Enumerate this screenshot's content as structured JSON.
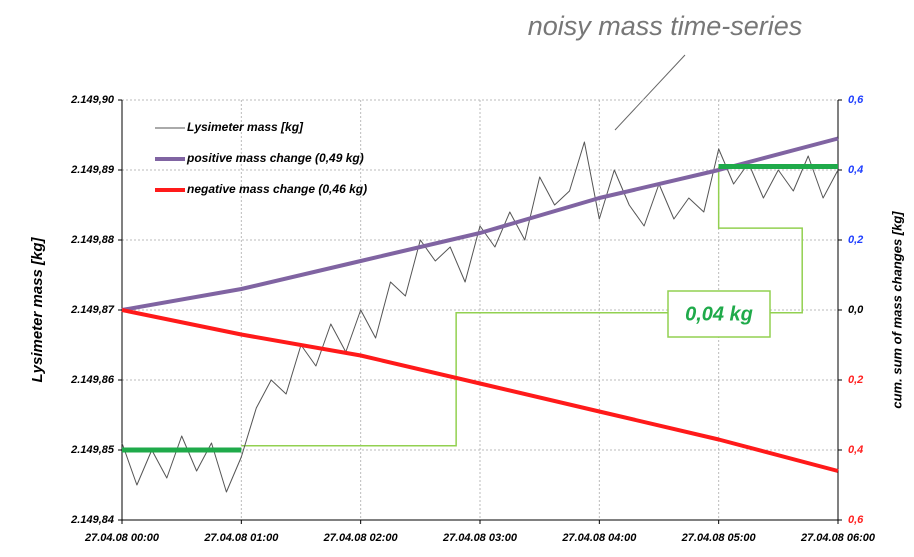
{
  "chart_data": {
    "type": "line",
    "annotation_top": "noisy mass time-series",
    "annotation_box": "0,04 kg",
    "ylabel": "Lysimeter mass [kg]",
    "y2label": "cum. sum of mass changes [kg]",
    "xlim": [
      0,
      6
    ],
    "xticks": [
      {
        "value": 0,
        "label": "27.04.08 00:00"
      },
      {
        "value": 1,
        "label": "27.04.08 01:00"
      },
      {
        "value": 2,
        "label": "27.04.08 02:00"
      },
      {
        "value": 3,
        "label": "27.04.08 03:00"
      },
      {
        "value": 4,
        "label": "27.04.08 04:00"
      },
      {
        "value": 5,
        "label": "27.04.08 05:00"
      },
      {
        "value": 6,
        "label": "27.04.08 06:00"
      }
    ],
    "ylim": [
      2149.84,
      2149.9
    ],
    "yticks": [
      {
        "value": 2149.84,
        "label": "2.149,84"
      },
      {
        "value": 2149.85,
        "label": "2.149,85"
      },
      {
        "value": 2149.86,
        "label": "2.149,86"
      },
      {
        "value": 2149.87,
        "label": "2.149,87"
      },
      {
        "value": 2149.88,
        "label": "2.149,88"
      },
      {
        "value": 2149.89,
        "label": "2.149,89"
      },
      {
        "value": 2149.9,
        "label": "2.149,90"
      }
    ],
    "y2lim": [
      -0.6,
      0.6
    ],
    "y2ticks": [
      {
        "value": 0.6,
        "label": "0,6"
      },
      {
        "value": 0.4,
        "label": "0,4"
      },
      {
        "value": 0.2,
        "label": "0,2"
      },
      {
        "value": 0,
        "label": "0,0"
      },
      {
        "value": -0.2,
        "label": "0,2"
      },
      {
        "value": -0.4,
        "label": "0,4"
      },
      {
        "value": -0.6,
        "label": "0,6"
      }
    ],
    "y2tick_colors": [
      "#1f3fff",
      "#1f3fff",
      "#1f3fff",
      "#000000",
      "#ff2020",
      "#ff2020",
      "#ff2020"
    ],
    "grid": true,
    "series": [
      {
        "name": "Lysimeter mass [kg]",
        "color": "#555555",
        "width": 1,
        "x": [
          0,
          0.125,
          0.25,
          0.375,
          0.5,
          0.625,
          0.75,
          0.875,
          1,
          1.125,
          1.25,
          1.375,
          1.5,
          1.625,
          1.75,
          1.875,
          2,
          2.125,
          2.25,
          2.375,
          2.5,
          2.625,
          2.75,
          2.875,
          3,
          3.125,
          3.25,
          3.375,
          3.5,
          3.625,
          3.75,
          3.875,
          4,
          4.125,
          4.25,
          4.375,
          4.5,
          4.625,
          4.75,
          4.875,
          5,
          5.125,
          5.25,
          5.375,
          5.5,
          5.625,
          5.75,
          5.875,
          6
        ],
        "values": [
          2149.851,
          2149.845,
          2149.85,
          2149.846,
          2149.852,
          2149.847,
          2149.851,
          2149.844,
          2149.849,
          2149.856,
          2149.86,
          2149.858,
          2149.865,
          2149.862,
          2149.868,
          2149.864,
          2149.87,
          2149.866,
          2149.874,
          2149.872,
          2149.88,
          2149.877,
          2149.879,
          2149.874,
          2149.882,
          2149.879,
          2149.884,
          2149.88,
          2149.889,
          2149.885,
          2149.887,
          2149.894,
          2149.883,
          2149.89,
          2149.885,
          2149.882,
          2149.888,
          2149.883,
          2149.886,
          2149.884,
          2149.893,
          2149.888,
          2149.891,
          2149.886,
          2149.89,
          2149.887,
          2149.892,
          2149.886,
          2149.89
        ]
      },
      {
        "name": "positive mass change (0,49 kg)",
        "color": "#8064a2",
        "width": 4,
        "axis": "y2",
        "x": [
          0,
          1,
          2,
          3,
          4,
          5,
          6
        ],
        "values": [
          0,
          0.06,
          0.14,
          0.22,
          0.32,
          0.4,
          0.49
        ]
      },
      {
        "name": "negative mass change (0,46 kg)",
        "color": "#ff1a1a",
        "width": 4,
        "axis": "y2",
        "x": [
          0,
          1,
          2,
          3,
          4,
          5,
          6
        ],
        "values": [
          0,
          -0.07,
          -0.13,
          -0.21,
          -0.29,
          -0.37,
          -0.46
        ]
      }
    ],
    "threshold_line": {
      "color": "#92d050",
      "x": [
        1,
        2.8,
        2.8,
        5.7,
        5.7,
        5,
        5
      ],
      "values": [
        2149.8506,
        2149.8506,
        2149.8696,
        2149.8696,
        2149.8817,
        2149.8817,
        2149.8905
      ]
    },
    "level_segments": {
      "color": "#1faa4a",
      "x": [
        [
          0,
          1
        ],
        [
          5,
          6
        ]
      ],
      "values": [
        2149.85,
        2149.8905
      ]
    }
  }
}
